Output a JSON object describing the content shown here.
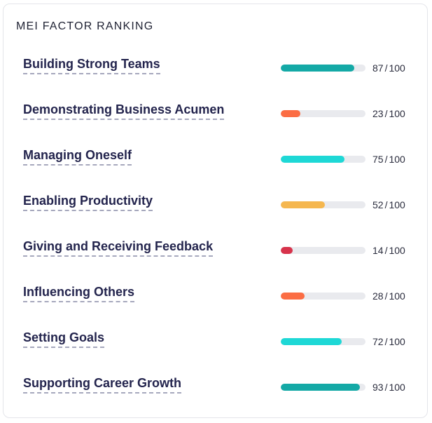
{
  "panel": {
    "title": "MEI FACTOR RANKING"
  },
  "factors": [
    {
      "label": "Building Strong Teams",
      "score": 87,
      "max": "100",
      "color": "#14a9a6"
    },
    {
      "label": "Demonstrating Business Acumen",
      "score": 23,
      "max": "100",
      "color": "#fb6d44"
    },
    {
      "label": "Managing Oneself",
      "score": 75,
      "max": "100",
      "color": "#1ed8d6"
    },
    {
      "label": "Enabling Productivity",
      "score": 52,
      "max": "100",
      "color": "#f5b74f"
    },
    {
      "label": "Giving and Receiving Feedback",
      "score": 14,
      "max": "100",
      "color": "#d7334b"
    },
    {
      "label": "Influencing Others",
      "score": 28,
      "max": "100",
      "color": "#fb6d44"
    },
    {
      "label": "Setting Goals",
      "score": 72,
      "max": "100",
      "color": "#1ed8d6"
    },
    {
      "label": "Supporting Career Growth",
      "score": 93,
      "max": "100",
      "color": "#14a9a6"
    }
  ]
}
